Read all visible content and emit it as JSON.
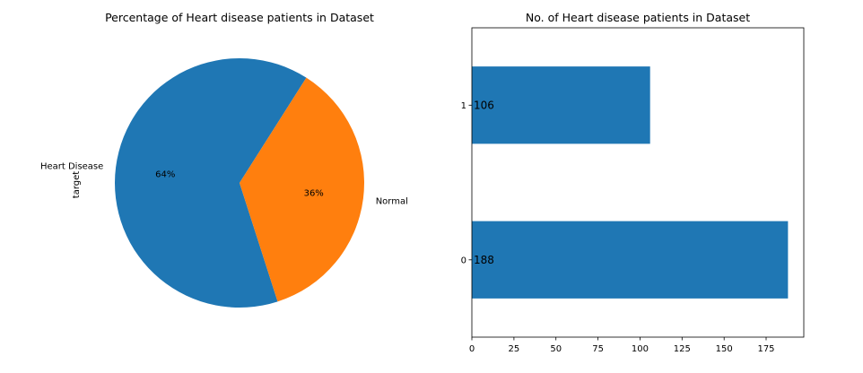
{
  "chart_data": [
    {
      "type": "pie",
      "title": "Percentage of Heart disease patients in Dataset",
      "ylabel": "target",
      "slices": [
        {
          "label": "Heart Disease",
          "value": 188,
          "percent_label": "64%",
          "color": "#1f77b4"
        },
        {
          "label": "Normal",
          "value": 106,
          "percent_label": "36%",
          "color": "#ff7f0e"
        }
      ]
    },
    {
      "type": "bar",
      "orientation": "horizontal",
      "title": "No. of Heart disease patients in Dataset",
      "categories": [
        "0",
        "1"
      ],
      "values": [
        188,
        106
      ],
      "data_labels": [
        "188",
        "106"
      ],
      "xlim": [
        0,
        197.4
      ],
      "xticks": [
        0,
        25,
        50,
        75,
        100,
        125,
        150,
        175
      ],
      "bar_color": "#1f77b4"
    }
  ]
}
